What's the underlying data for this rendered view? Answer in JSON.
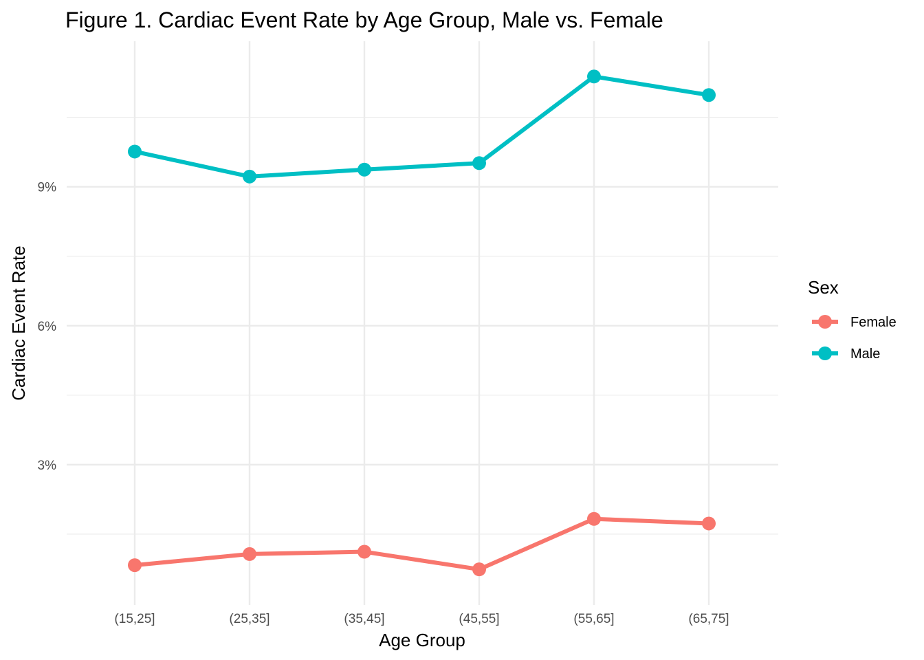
{
  "chart_data": {
    "type": "line",
    "title": "Figure 1. Cardiac Event Rate by Age Group, Male vs. Female",
    "xlabel": "Age Group",
    "ylabel": "Cardiac Event Rate",
    "categories": [
      "(15,25]",
      "(25,35]",
      "(35,45]",
      "(45,55]",
      "(55,65]",
      "(65,75]"
    ],
    "ylim": [
      0.0,
      0.118
    ],
    "y_ticks": [
      0.03,
      0.06,
      0.09
    ],
    "y_tick_labels": [
      "3%",
      "6%",
      "9%"
    ],
    "y_minor_ticks": [
      0.015,
      0.045,
      0.075,
      0.105
    ],
    "grid": true,
    "legend": {
      "title": "Sex",
      "position": "right"
    },
    "series": [
      {
        "name": "Female",
        "color": "#F8766D",
        "values": [
          0.0083,
          0.0107,
          0.0112,
          0.0074,
          0.0183,
          0.0173
        ]
      },
      {
        "name": "Male",
        "color": "#00BFC4",
        "values": [
          0.0976,
          0.0922,
          0.0937,
          0.0951,
          0.1138,
          0.1098
        ]
      }
    ]
  }
}
